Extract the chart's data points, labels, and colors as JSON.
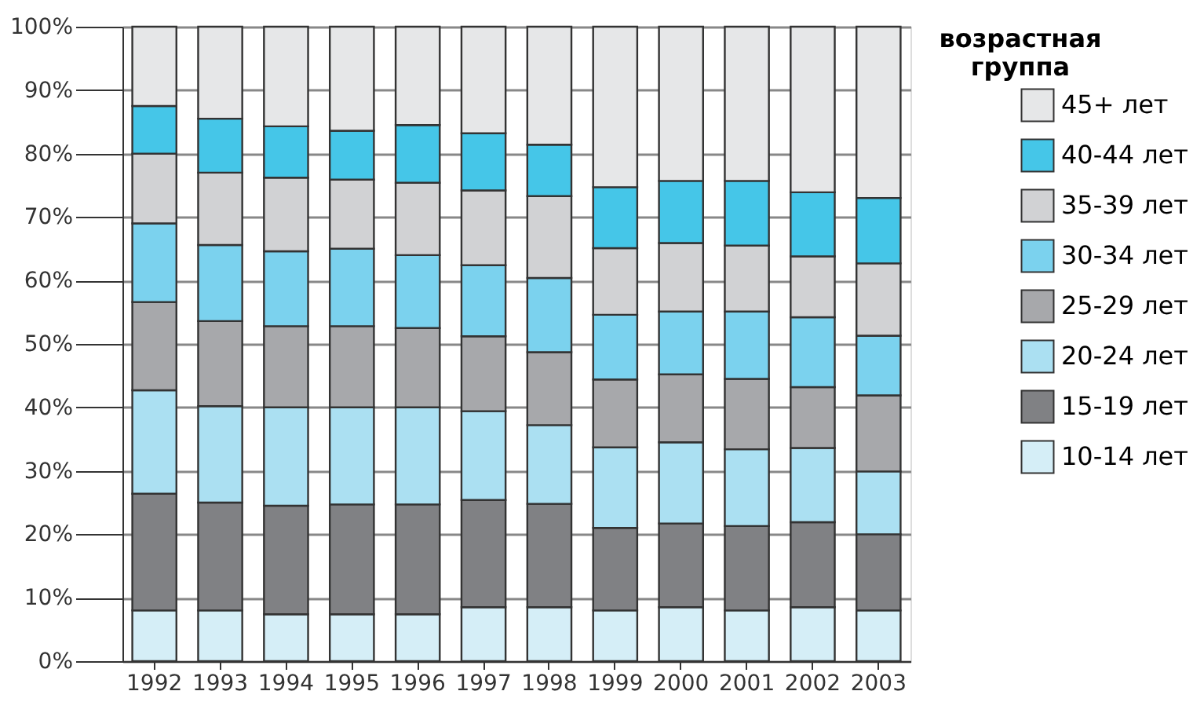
{
  "chart_data": {
    "type": "bar",
    "stacked": true,
    "legend_title": "возрастная группа",
    "legend": "right",
    "grid": "y",
    "categories": [
      "1992",
      "1993",
      "1994",
      "1995",
      "1996",
      "1997",
      "1998",
      "1999",
      "2000",
      "2001",
      "2002",
      "2003"
    ],
    "ylim": [
      0,
      100
    ],
    "yticks": [
      {
        "value": 0,
        "label": "0%"
      },
      {
        "value": 10,
        "label": "10%"
      },
      {
        "value": 20,
        "label": "20%"
      },
      {
        "value": 30,
        "label": "30%"
      },
      {
        "value": 40,
        "label": "40%"
      },
      {
        "value": 50,
        "label": "50%"
      },
      {
        "value": 60,
        "label": "60%"
      },
      {
        "value": 70,
        "label": "70%"
      },
      {
        "value": 80,
        "label": "80%"
      },
      {
        "value": 90,
        "label": "90%"
      },
      {
        "value": 100,
        "label": "100%"
      }
    ],
    "series": [
      {
        "name": "10-14 лет",
        "color": "#d5eef7",
        "values": [
          8.0,
          8.0,
          7.4,
          7.4,
          7.4,
          8.5,
          8.5,
          8.0,
          8.5,
          8.0,
          8.5,
          8.0
        ]
      },
      {
        "name": "15-19 лет",
        "color": "#808184",
        "values": [
          18.4,
          17.0,
          17.1,
          17.3,
          17.3,
          16.9,
          16.3,
          13.0,
          13.2,
          13.3,
          13.4,
          12.0
        ]
      },
      {
        "name": "20-24 лет",
        "color": "#abe0f2",
        "values": [
          16.3,
          15.2,
          15.5,
          15.3,
          15.3,
          14.0,
          12.4,
          12.7,
          12.8,
          12.1,
          11.7,
          9.9
        ]
      },
      {
        "name": "25-29 лет",
        "color": "#a7a8ab",
        "values": [
          13.9,
          13.4,
          12.8,
          12.8,
          12.5,
          11.8,
          11.5,
          10.7,
          10.7,
          11.1,
          9.6,
          12.0
        ]
      },
      {
        "name": "30-34 лет",
        "color": "#7bd2ee",
        "values": [
          12.4,
          12.0,
          11.8,
          12.2,
          11.5,
          11.2,
          11.7,
          10.2,
          9.9,
          10.6,
          11.0,
          9.4
        ]
      },
      {
        "name": "35-39 лет",
        "color": "#d1d2d4",
        "values": [
          11.0,
          11.4,
          11.6,
          10.9,
          11.4,
          11.8,
          12.9,
          10.5,
          10.8,
          10.4,
          9.6,
          11.4
        ]
      },
      {
        "name": "40-44 лет",
        "color": "#45c6e8",
        "values": [
          7.5,
          8.5,
          8.1,
          7.7,
          9.1,
          9.0,
          8.1,
          9.6,
          9.8,
          10.2,
          10.1,
          10.3
        ]
      },
      {
        "name": "45+ лет",
        "color": "#e6e7e8",
        "values": [
          12.5,
          14.5,
          15.7,
          16.4,
          15.5,
          16.8,
          18.6,
          25.3,
          24.3,
          24.3,
          26.1,
          27.0
        ]
      }
    ]
  }
}
